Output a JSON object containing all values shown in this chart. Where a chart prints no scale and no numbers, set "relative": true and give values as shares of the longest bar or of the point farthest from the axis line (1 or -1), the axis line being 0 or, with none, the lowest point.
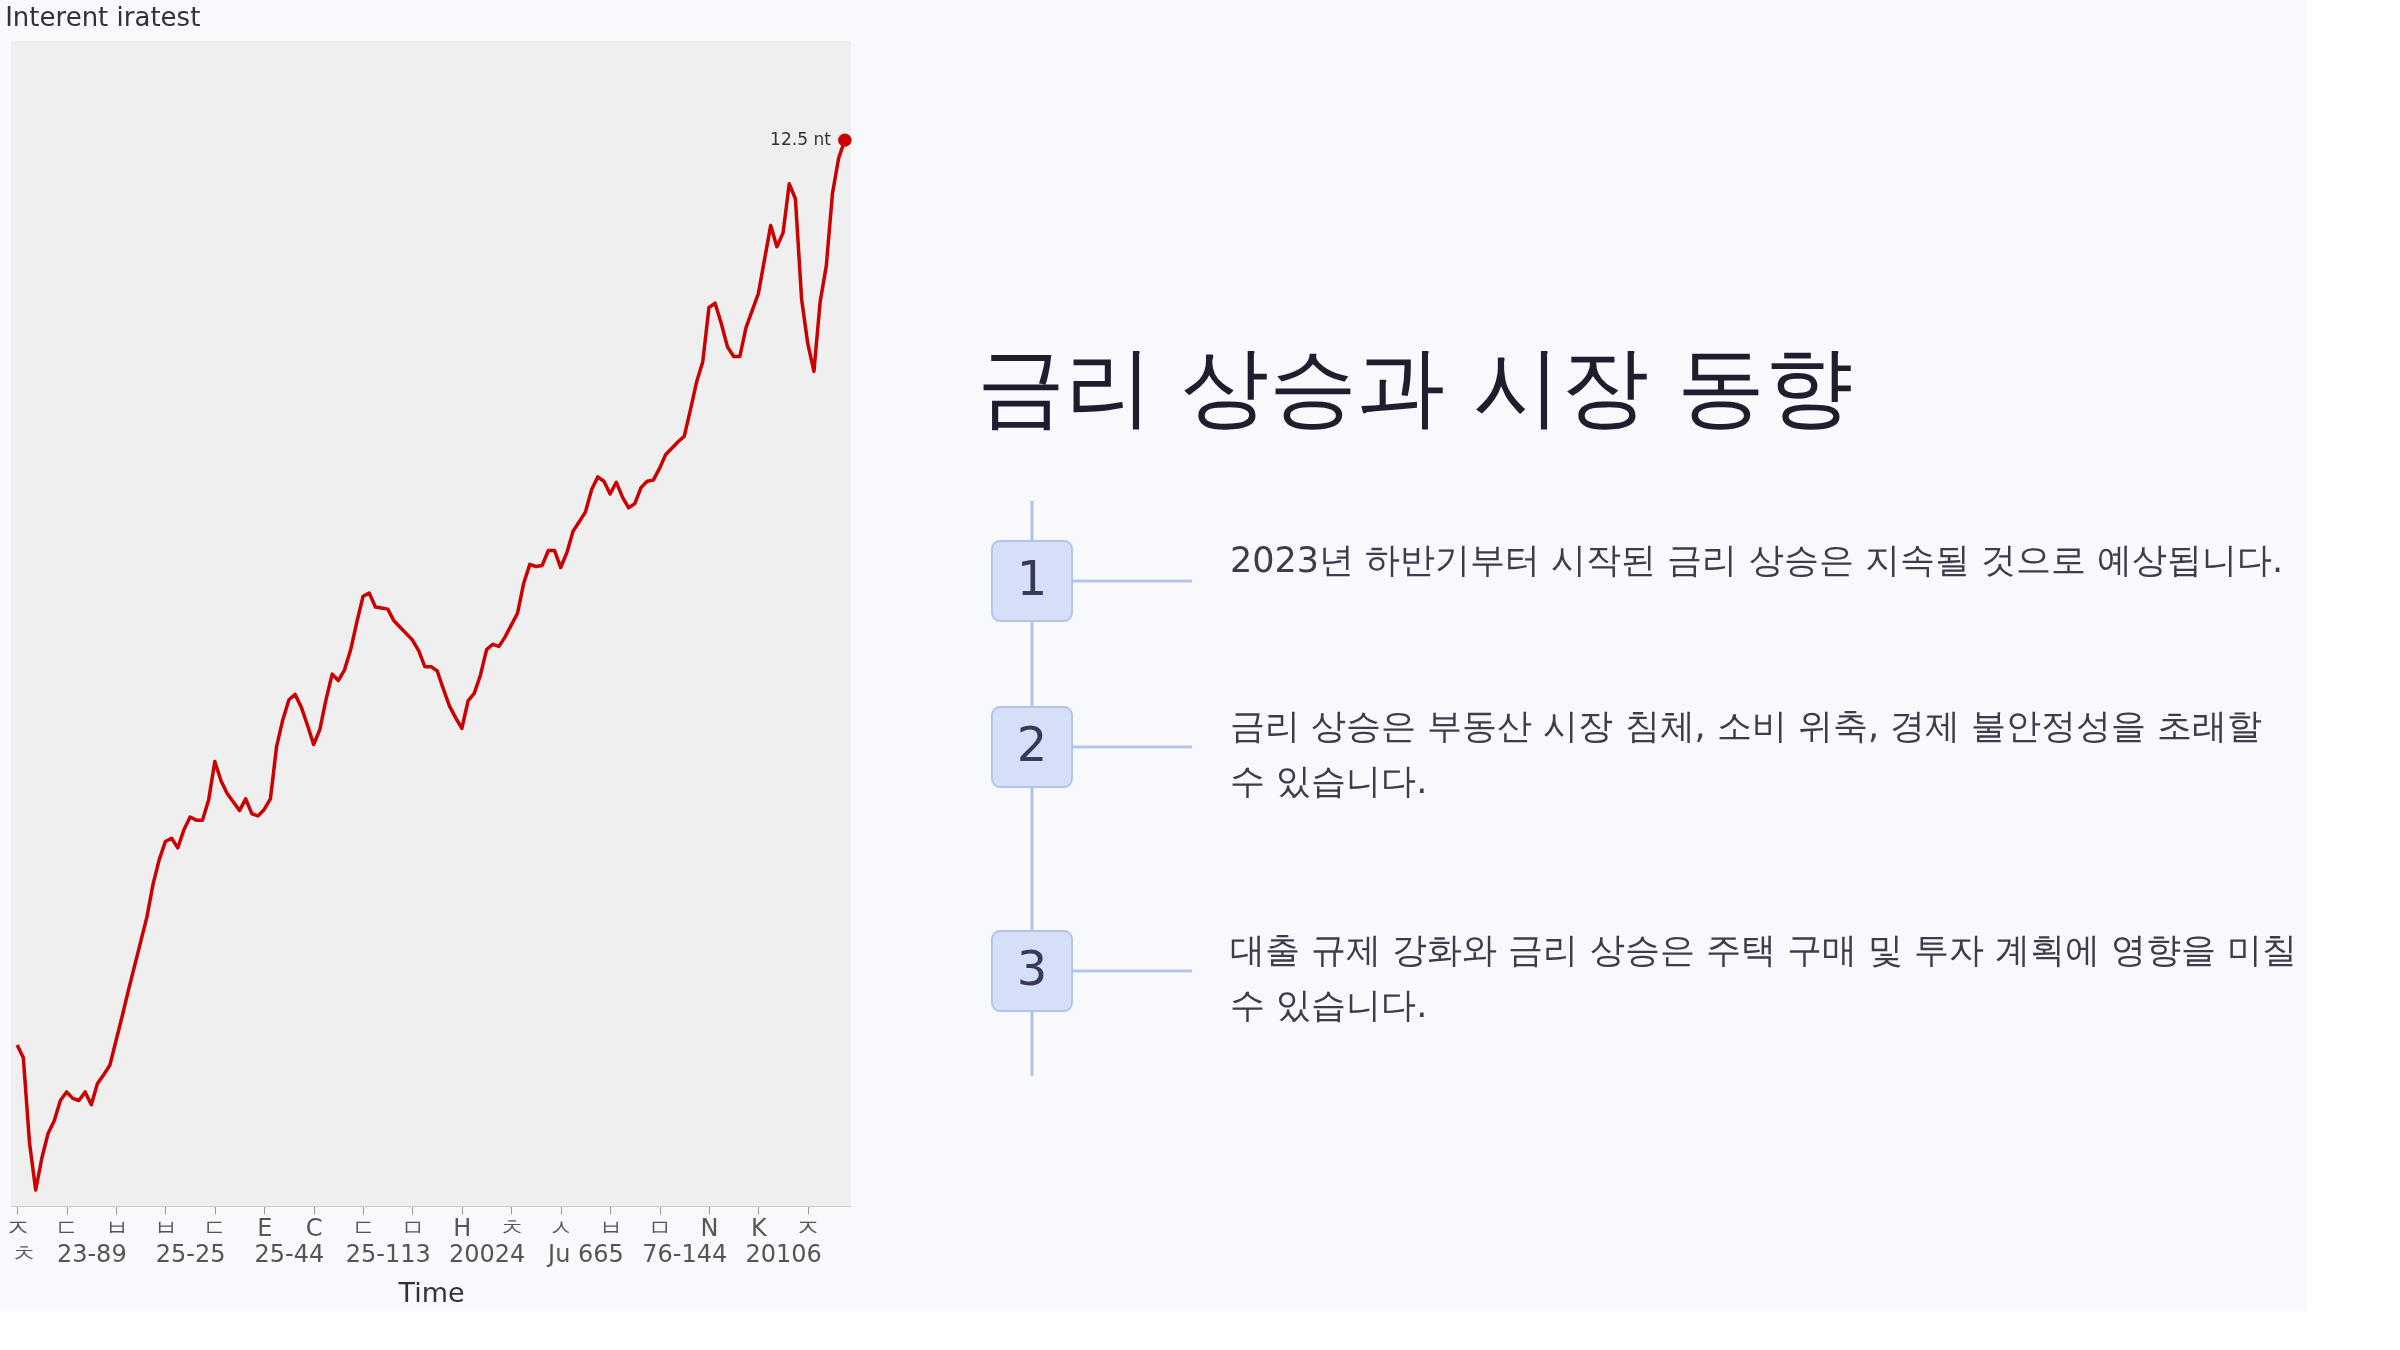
{
  "chart_data": [
    {
      "type": "line",
      "title": "Interent iratest",
      "xlabel": "Time",
      "color": "#cc0000",
      "line_style": "solid",
      "relative": true,
      "categories": [
        "ㅈ",
        "ㅊ",
        null,
        null,
        null,
        null,
        null,
        null,
        "ㄷ",
        null,
        null,
        null,
        "23-89",
        null,
        null,
        null,
        "ㅂ",
        null,
        null,
        null,
        null,
        null,
        null,
        null,
        "ㅂ",
        null,
        null,
        null,
        "25-25",
        null,
        null,
        null,
        "ㄷ",
        null,
        null,
        null,
        null,
        null,
        null,
        null,
        "E",
        null,
        null,
        null,
        "25-44",
        null,
        null,
        null,
        "C",
        null,
        null,
        null,
        null,
        null,
        null,
        null,
        "ㄷ",
        null,
        null,
        null,
        "25-113",
        null,
        null,
        null,
        "ㅁ",
        null,
        null,
        null,
        null,
        null,
        null,
        null,
        "H",
        null,
        null,
        null,
        "20024",
        null,
        null,
        null,
        "ㅊ",
        null,
        null,
        null,
        null,
        null,
        null,
        null,
        "ㅅ",
        null,
        null,
        null,
        "Ju 665",
        null,
        null,
        null,
        "ㅂ",
        null,
        null,
        null,
        null,
        null,
        null,
        null,
        "ㅁ",
        null,
        null,
        null,
        "76-144",
        null,
        null,
        null,
        "N",
        null,
        null,
        null,
        null,
        null,
        null,
        null,
        "K",
        null,
        null,
        null,
        "20106",
        null,
        null,
        null,
        "ㅈ",
        null,
        null,
        null,
        null,
        null,
        null
      ],
      "values": [
        0.151,
        0.139,
        0.059,
        0.015,
        0.045,
        0.068,
        0.08,
        0.099,
        0.107,
        0.101,
        0.099,
        0.107,
        0.095,
        0.115,
        0.123,
        0.132,
        0.155,
        0.178,
        0.202,
        0.225,
        0.248,
        0.271,
        0.302,
        0.325,
        0.342,
        0.345,
        0.336,
        0.353,
        0.365,
        0.362,
        0.362,
        0.381,
        0.417,
        0.399,
        0.387,
        0.379,
        0.371,
        0.382,
        0.368,
        0.366,
        0.372,
        0.382,
        0.431,
        0.456,
        0.475,
        0.48,
        0.468,
        0.451,
        0.433,
        0.447,
        0.475,
        0.499,
        0.493,
        0.503,
        0.522,
        0.548,
        0.572,
        0.575,
        0.562,
        0.561,
        0.56,
        0.549,
        0.543,
        0.537,
        0.531,
        0.521,
        0.506,
        0.506,
        0.502,
        0.485,
        0.469,
        0.458,
        0.448,
        0.474,
        0.481,
        0.498,
        0.522,
        0.527,
        0.525,
        0.534,
        0.545,
        0.556,
        0.584,
        0.602,
        0.6,
        0.601,
        0.615,
        0.615,
        0.599,
        0.613,
        0.633,
        0.642,
        0.651,
        0.672,
        0.684,
        0.68,
        0.668,
        0.679,
        0.665,
        0.655,
        0.659,
        0.674,
        0.68,
        0.681,
        0.692,
        0.705,
        0.711,
        0.717,
        0.722,
        0.747,
        0.773,
        0.792,
        0.843,
        0.847,
        0.828,
        0.806,
        0.797,
        0.797,
        0.824,
        0.84,
        0.856,
        0.888,
        0.92,
        0.9,
        0.913,
        0.959,
        0.945,
        0.851,
        0.809,
        0.783,
        0.848,
        0.882,
        0.95,
        0.983,
        1.0
      ],
      "annotations": [
        "12.5 nt"
      ]
    },
    {
      "type": "other",
      "title": "금리 상승과 시장 동향",
      "annotations": [
        "1",
        "2023년 하반기부터 시작된 금리 상승은 지속될 것으로 예상됩니다.",
        "2",
        "금리 상승은 부동산 시장 침체, 소비 위축, 경제 불안정성을 초래할 수 있습니다.",
        "3",
        "대출 규제 강화와 금리 상승은 주택 구매 및 투자 계획에 영향을 미칠 수 있습니다."
      ]
    }
  ]
}
